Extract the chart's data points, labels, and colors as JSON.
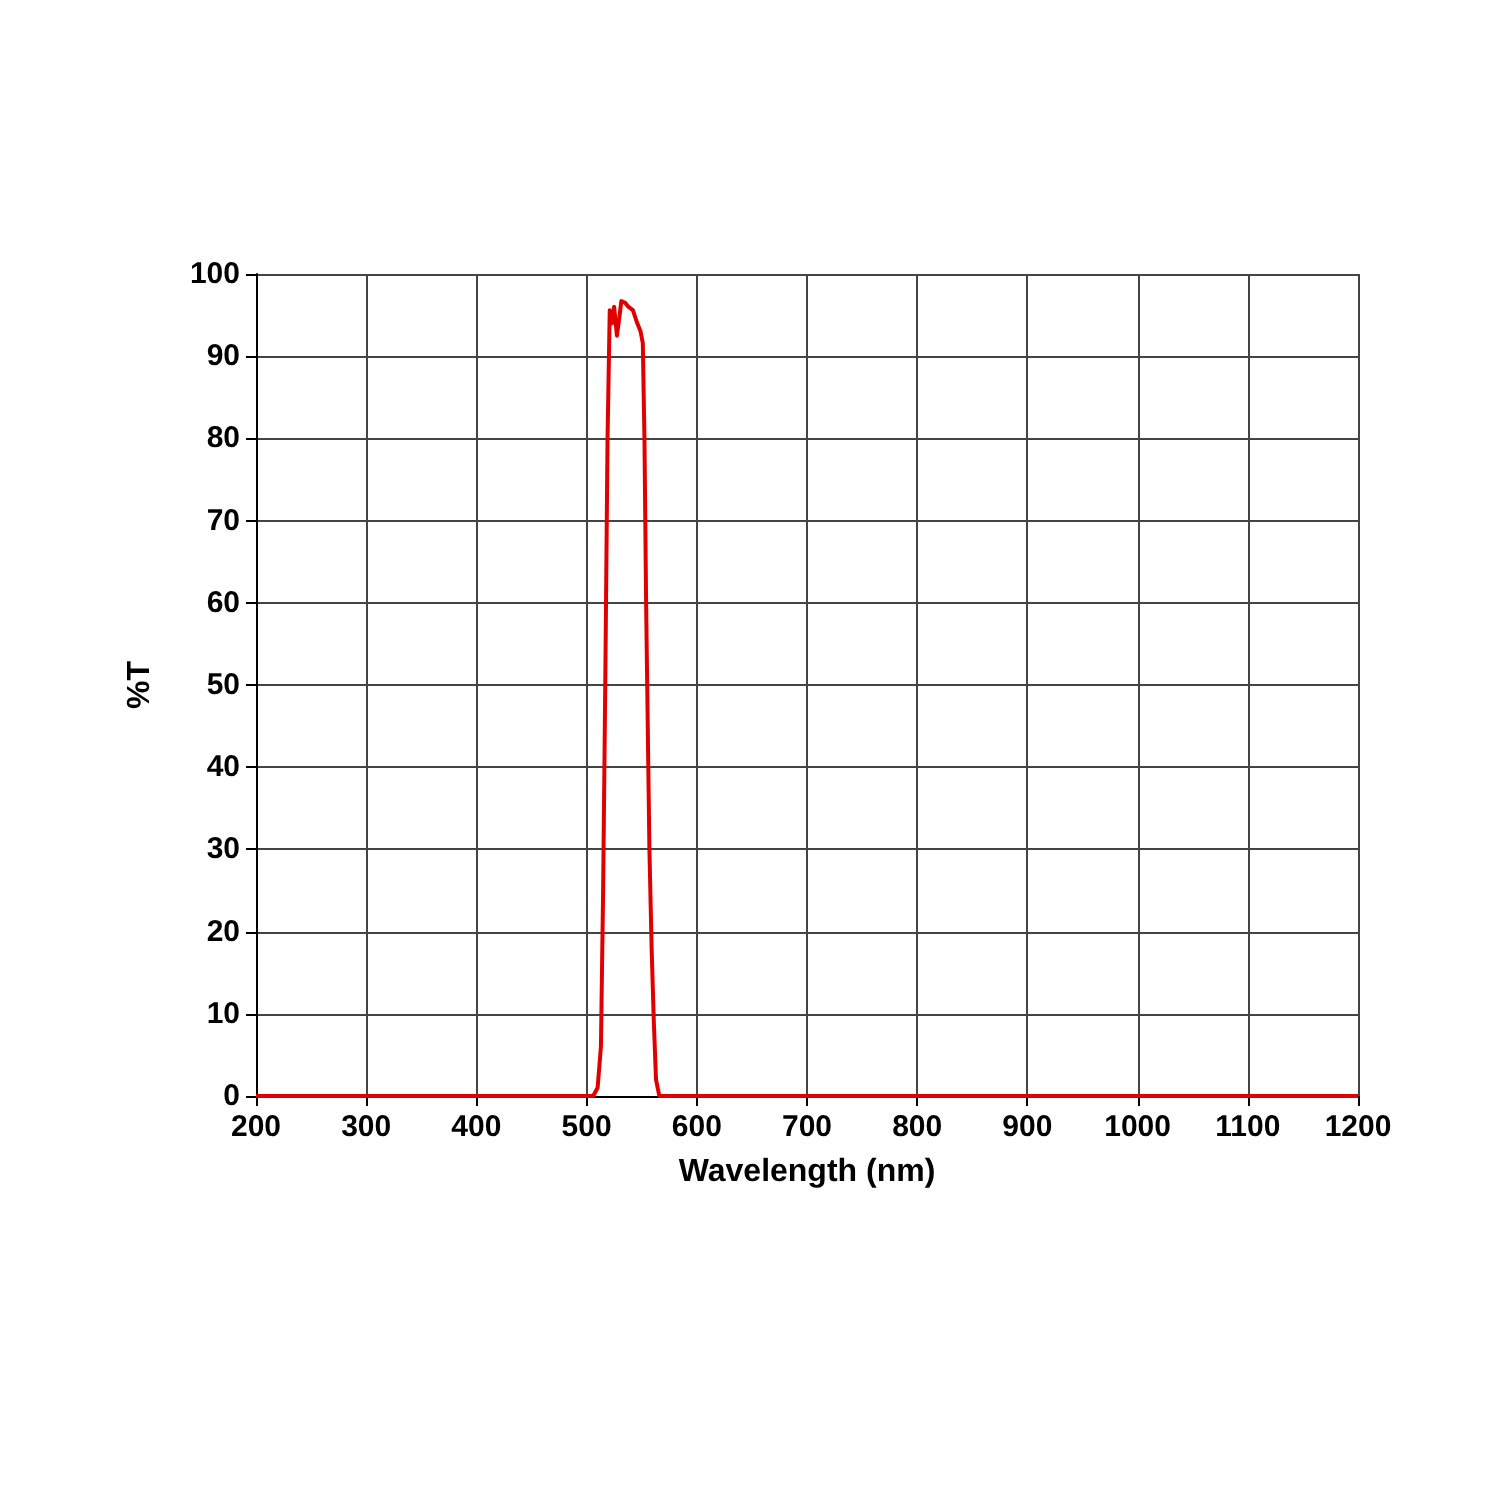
{
  "chart_data": {
    "type": "line",
    "xlabel": "Wavelength (nm)",
    "ylabel": "%T",
    "xlim": [
      200,
      1200
    ],
    "ylim": [
      0,
      100
    ],
    "xticks": [
      200,
      300,
      400,
      500,
      600,
      700,
      800,
      900,
      1000,
      1100,
      1200
    ],
    "yticks": [
      0,
      10,
      20,
      30,
      40,
      50,
      60,
      70,
      80,
      90,
      100
    ],
    "grid": true,
    "marker": "none",
    "line_style": "solid",
    "series": [
      {
        "color": "#e00000",
        "x": [
          200,
          500,
          506,
          510,
          513,
          515,
          517,
          519,
          521,
          523,
          525,
          527.5,
          530,
          531.5,
          535,
          538,
          542,
          546,
          549,
          551,
          552.5,
          554,
          555,
          557,
          559,
          561,
          563,
          566,
          600,
          1200
        ],
        "values": [
          0,
          0,
          0,
          1,
          6,
          25,
          51,
          80,
          95.6,
          94,
          96,
          92.5,
          95,
          96.7,
          96.5,
          96,
          95.6,
          94,
          93,
          91.6,
          80,
          60,
          50,
          30,
          18,
          9,
          2,
          0,
          0,
          0
        ]
      }
    ]
  }
}
